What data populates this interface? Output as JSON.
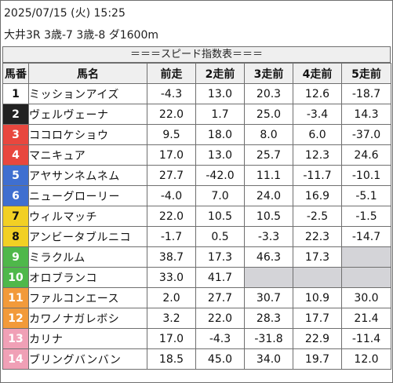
{
  "header": {
    "datetime": "2025/07/15 (火) 15:25",
    "race_info": "大井3R 3歳-7 3歳-8 ダ1600m"
  },
  "banner_title": "＝＝＝スピード指数表＝＝＝",
  "columns": [
    "馬番",
    "馬名",
    "前走",
    "2走前",
    "3走前",
    "4走前",
    "5走前"
  ],
  "rows": [
    {
      "num": "1",
      "name": "ミッションアイズ",
      "vals": [
        "-4.3",
        "13.0",
        "20.3",
        "12.6",
        "-18.7"
      ],
      "bg": "#ffffff",
      "fg": "#111111"
    },
    {
      "num": "2",
      "name": "ヴェルヴェーナ",
      "vals": [
        "22.0",
        "1.7",
        "25.0",
        "-3.4",
        "14.3"
      ],
      "bg": "#222222",
      "fg": "#ffffff"
    },
    {
      "num": "3",
      "name": "ココロケショウ",
      "vals": [
        "9.5",
        "18.0",
        "8.0",
        "6.0",
        "-37.0"
      ],
      "bg": "#e8473e",
      "fg": "#ffffff"
    },
    {
      "num": "4",
      "name": "マニキュア",
      "vals": [
        "17.0",
        "13.0",
        "25.7",
        "12.3",
        "24.6"
      ],
      "bg": "#e8473e",
      "fg": "#ffffff"
    },
    {
      "num": "5",
      "name": "アヤサンネムネム",
      "vals": [
        "27.7",
        "-42.0",
        "11.1",
        "-11.7",
        "-10.1"
      ],
      "bg": "#3f6fd0",
      "fg": "#ffffff"
    },
    {
      "num": "6",
      "name": "ニューグローリー",
      "vals": [
        "-4.0",
        "7.0",
        "24.0",
        "16.9",
        "-5.1"
      ],
      "bg": "#3f6fd0",
      "fg": "#ffffff"
    },
    {
      "num": "7",
      "name": "ウィルマッチ",
      "vals": [
        "22.0",
        "10.5",
        "10.5",
        "-2.5",
        "-1.5"
      ],
      "bg": "#f2d024",
      "fg": "#111111"
    },
    {
      "num": "8",
      "name": "アンビータブルニコ",
      "vals": [
        "-1.7",
        "0.5",
        "-3.3",
        "22.3",
        "-14.7"
      ],
      "bg": "#f2d024",
      "fg": "#111111"
    },
    {
      "num": "9",
      "name": "ミラクルム",
      "vals": [
        "38.7",
        "17.3",
        "46.3",
        "17.3",
        ""
      ],
      "bg": "#4fb84a",
      "fg": "#ffffff"
    },
    {
      "num": "10",
      "name": "オロブランコ",
      "vals": [
        "33.0",
        "41.7",
        "",
        "",
        ""
      ],
      "bg": "#4fb84a",
      "fg": "#ffffff"
    },
    {
      "num": "11",
      "name": "ファルコンエース",
      "vals": [
        "2.0",
        "27.7",
        "30.7",
        "10.9",
        "30.0"
      ],
      "bg": "#f29a3a",
      "fg": "#ffffff"
    },
    {
      "num": "12",
      "name": "カワノナガレボシ",
      "vals": [
        "3.2",
        "22.0",
        "28.3",
        "17.7",
        "21.4"
      ],
      "bg": "#f29a3a",
      "fg": "#ffffff"
    },
    {
      "num": "13",
      "name": "カリナ",
      "vals": [
        "17.0",
        "-4.3",
        "-31.8",
        "22.9",
        "-11.4"
      ],
      "bg": "#f0a0b6",
      "fg": "#ffffff"
    },
    {
      "num": "14",
      "name": "ブリングバンバン",
      "vals": [
        "18.5",
        "45.0",
        "34.0",
        "19.7",
        "12.0"
      ],
      "bg": "#f0a0b6",
      "fg": "#ffffff"
    }
  ],
  "colors": {
    "header_bg": "#efefef",
    "empty_cell": "#d4d4d8",
    "border": "#6f6f6f"
  }
}
